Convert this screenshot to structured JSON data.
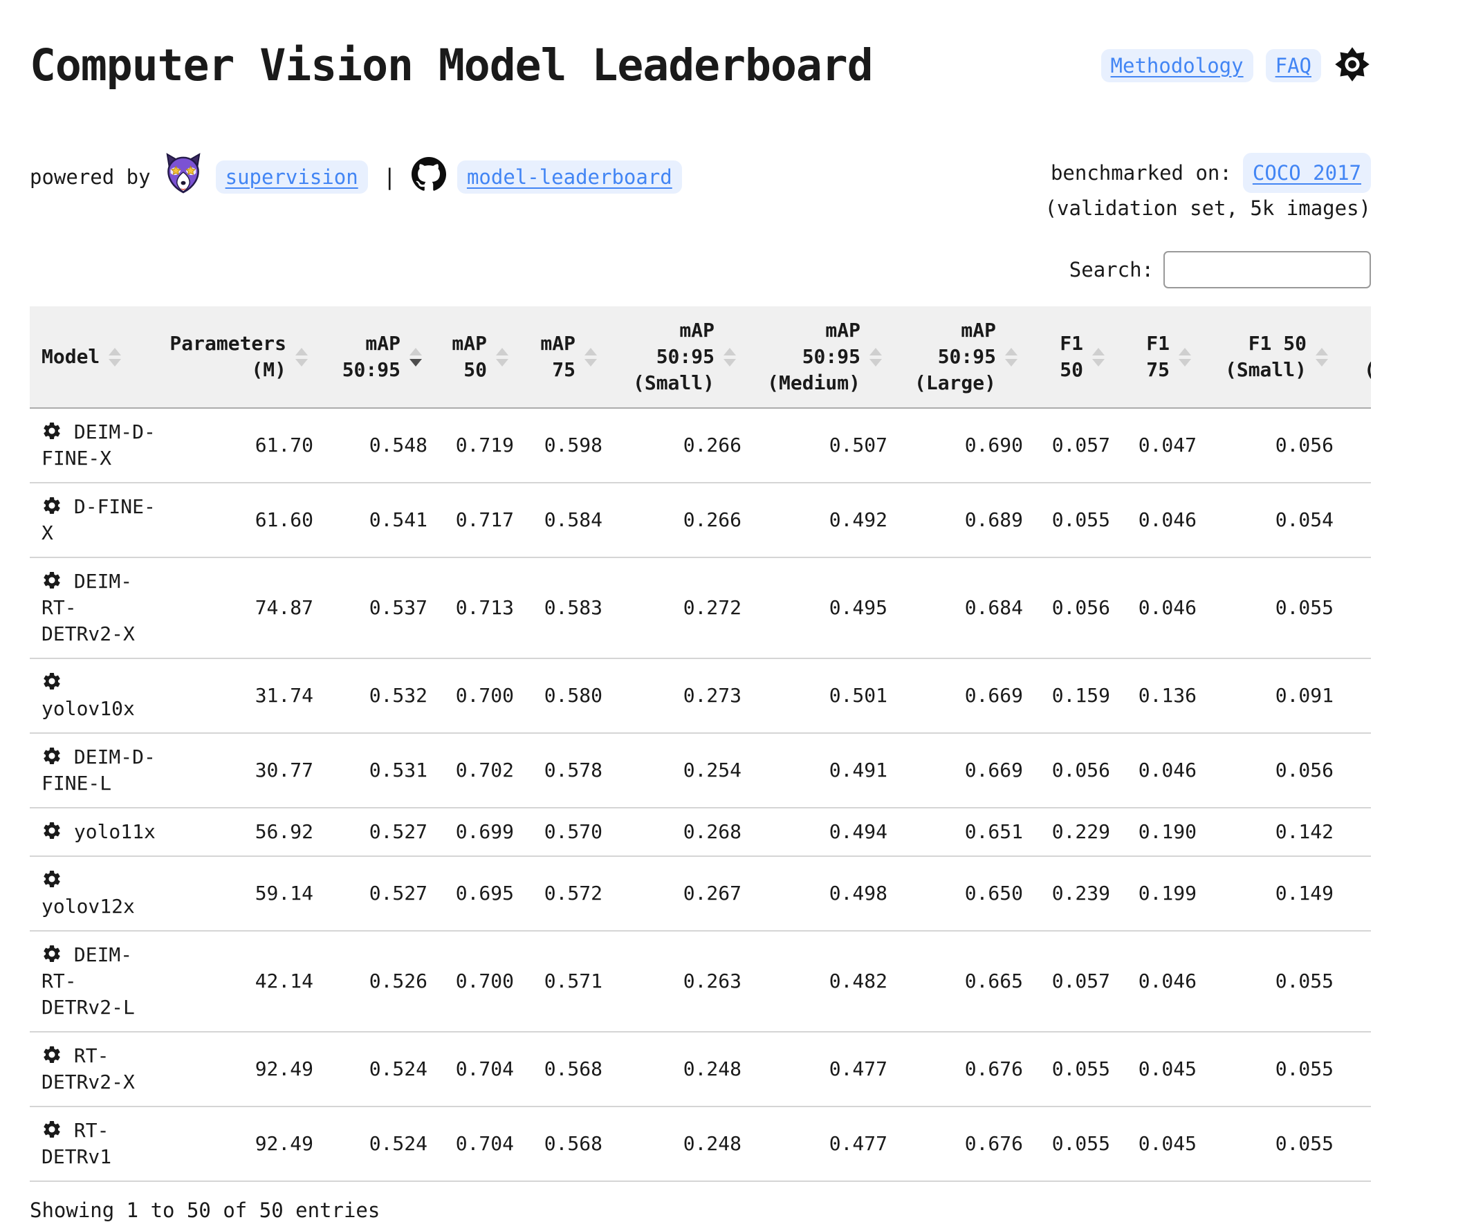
{
  "page": {
    "title": "Computer Vision Model Leaderboard"
  },
  "nav": {
    "items": [
      {
        "label": "Methodology"
      },
      {
        "label": "FAQ"
      }
    ],
    "settings_icon": "gear-icon"
  },
  "attribution": {
    "powered_by": "powered by",
    "supervision": {
      "label": "supervision",
      "icon": "supervision-wolf-icon"
    },
    "divider": "|",
    "repo": {
      "label": "model-leaderboard",
      "icon": "github-icon"
    }
  },
  "benchmark": {
    "label": "benchmarked on:",
    "dataset_link": "COCO 2017",
    "note": "(validation set, 5k images)"
  },
  "search": {
    "label": "Search:",
    "value": "",
    "placeholder": ""
  },
  "table": {
    "columns": [
      {
        "label": "Model",
        "align": "left",
        "sort": "both"
      },
      {
        "label": "Parameters\n(M)",
        "align": "right",
        "sort": "both"
      },
      {
        "label": "mAP\n50:95",
        "align": "right",
        "sort": "desc"
      },
      {
        "label": "mAP\n50",
        "align": "right",
        "sort": "both"
      },
      {
        "label": "mAP\n75",
        "align": "right",
        "sort": "both"
      },
      {
        "label": "mAP\n50:95\n(Small)",
        "align": "right",
        "sort": "both"
      },
      {
        "label": "mAP\n50:95\n(Medium)",
        "align": "right",
        "sort": "both"
      },
      {
        "label": "mAP\n50:95\n(Large)",
        "align": "right",
        "sort": "both"
      },
      {
        "label": "F1\n50",
        "align": "right",
        "sort": "both"
      },
      {
        "label": "F1\n75",
        "align": "right",
        "sort": "both"
      },
      {
        "label": "F1 50\n(Small)",
        "align": "right",
        "sort": "both"
      },
      {
        "label": "(",
        "align": "left",
        "sort": "none",
        "clipped": true
      }
    ],
    "rows": [
      {
        "model": "DEIM-D-FINE-X",
        "metrics": [
          "61.70",
          "0.548",
          "0.719",
          "0.598",
          "0.266",
          "0.507",
          "0.690",
          "0.057",
          "0.047",
          "0.056"
        ]
      },
      {
        "model": "D-FINE-X",
        "metrics": [
          "61.60",
          "0.541",
          "0.717",
          "0.584",
          "0.266",
          "0.492",
          "0.689",
          "0.055",
          "0.046",
          "0.054"
        ]
      },
      {
        "model": "DEIM-RT-DETRv2-X",
        "metrics": [
          "74.87",
          "0.537",
          "0.713",
          "0.583",
          "0.272",
          "0.495",
          "0.684",
          "0.056",
          "0.046",
          "0.055"
        ]
      },
      {
        "model": "yolov10x",
        "metrics": [
          "31.74",
          "0.532",
          "0.700",
          "0.580",
          "0.273",
          "0.501",
          "0.669",
          "0.159",
          "0.136",
          "0.091"
        ]
      },
      {
        "model": "DEIM-D-FINE-L",
        "metrics": [
          "30.77",
          "0.531",
          "0.702",
          "0.578",
          "0.254",
          "0.491",
          "0.669",
          "0.056",
          "0.046",
          "0.056"
        ]
      },
      {
        "model": "yolo11x",
        "metrics": [
          "56.92",
          "0.527",
          "0.699",
          "0.570",
          "0.268",
          "0.494",
          "0.651",
          "0.229",
          "0.190",
          "0.142"
        ]
      },
      {
        "model": "yolov12x",
        "metrics": [
          "59.14",
          "0.527",
          "0.695",
          "0.572",
          "0.267",
          "0.498",
          "0.650",
          "0.239",
          "0.199",
          "0.149"
        ]
      },
      {
        "model": "DEIM-RT-DETRv2-L",
        "metrics": [
          "42.14",
          "0.526",
          "0.700",
          "0.571",
          "0.263",
          "0.482",
          "0.665",
          "0.057",
          "0.046",
          "0.055"
        ]
      },
      {
        "model": "RT-DETRv2-X",
        "metrics": [
          "92.49",
          "0.524",
          "0.704",
          "0.568",
          "0.248",
          "0.477",
          "0.676",
          "0.055",
          "0.045",
          "0.055"
        ]
      },
      {
        "model": "RT-DETRv1",
        "metrics": [
          "92.49",
          "0.524",
          "0.704",
          "0.568",
          "0.248",
          "0.477",
          "0.676",
          "0.055",
          "0.045",
          "0.055"
        ]
      }
    ]
  },
  "footer": {
    "status": "Showing 1 to 50 of 50 entries"
  },
  "colors": {
    "link": "#4285F4",
    "link_pill_bg": "#E8F0FE",
    "header_bg": "#F0F0F0",
    "row_border": "#D5D5D5",
    "header_border": "#ABABAB",
    "sort_inactive": "#CFCFCF",
    "sort_active": "#4D4D4D",
    "text": "#1A1A1A"
  }
}
